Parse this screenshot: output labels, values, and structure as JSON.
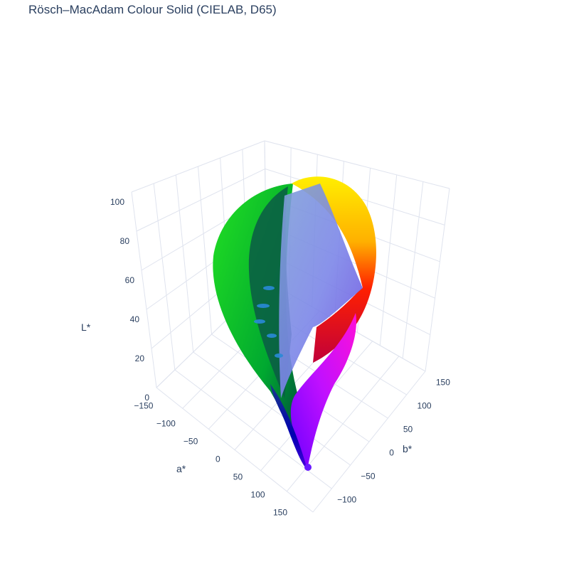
{
  "title": "Rösch–MacAdam Colour Solid (CIELAB, D65)",
  "chart_data": {
    "type": "scatter3d",
    "title": "Rösch–MacAdam Colour Solid (CIELAB, D65)",
    "axes": {
      "a": {
        "label": "a*",
        "range": [
          -150,
          150
        ],
        "ticks": [
          "−150",
          "−100",
          "−50",
          "0",
          "50",
          "100",
          "150"
        ]
      },
      "b": {
        "label": "b*",
        "range": [
          -150,
          150
        ],
        "ticks": [
          "−100",
          "−50",
          "0",
          "50",
          "100",
          "150"
        ]
      },
      "L": {
        "label": "L*",
        "range": [
          0,
          100
        ],
        "ticks": [
          "0",
          "20",
          "40",
          "60",
          "80",
          "100"
        ]
      }
    },
    "grid": true,
    "surface": {
      "black_point_lab": [
        0,
        0,
        0
      ],
      "white_point_lab": [
        100,
        0,
        0
      ],
      "hue_extremes": [
        {
          "name": "green",
          "hex": "#00c800"
        },
        {
          "name": "yellow",
          "hex": "#ffee00"
        },
        {
          "name": "red",
          "hex": "#ff0000"
        },
        {
          "name": "magenta",
          "hex": "#ff00ff"
        },
        {
          "name": "violet",
          "hex": "#7a00ff"
        },
        {
          "name": "blue",
          "hex": "#0000c8"
        }
      ],
      "inner_surface_color": "#8a90e8"
    }
  }
}
